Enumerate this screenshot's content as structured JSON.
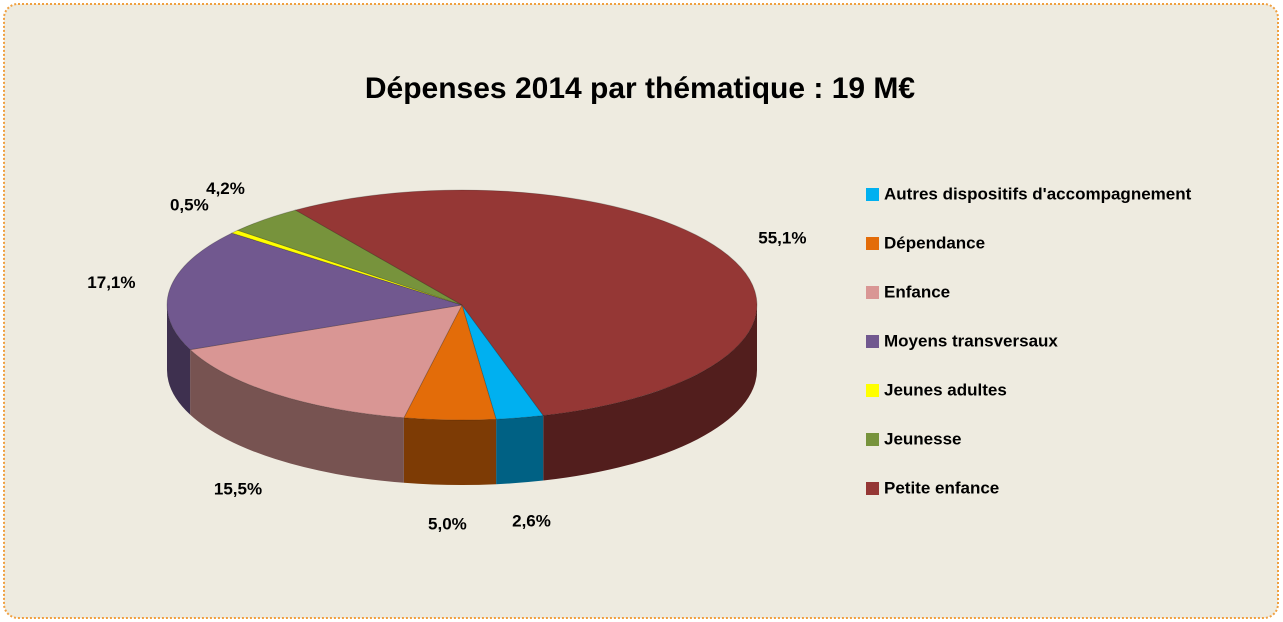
{
  "chart_data": {
    "type": "pie",
    "title": "Dépenses 2014 par thématique : 19 M€",
    "categories": [
      "Autres dispositifs d'accompagnement",
      "Dépendance",
      "Enfance",
      "Moyens transversaux",
      "Jeunes adultes",
      "Jeunesse",
      "Petite enfance"
    ],
    "values": [
      2.6,
      5.0,
      15.5,
      17.1,
      0.5,
      4.2,
      55.1
    ],
    "value_labels": [
      "2,6%",
      "5,0%",
      "15,5%",
      "17,1%",
      "0,5%",
      "4,2%",
      "55,1%"
    ],
    "colors": [
      "#00b0f0",
      "#e36c09",
      "#d99694",
      "#71588f",
      "#ffff00",
      "#77933c",
      "#953735"
    ],
    "legend": "right"
  }
}
